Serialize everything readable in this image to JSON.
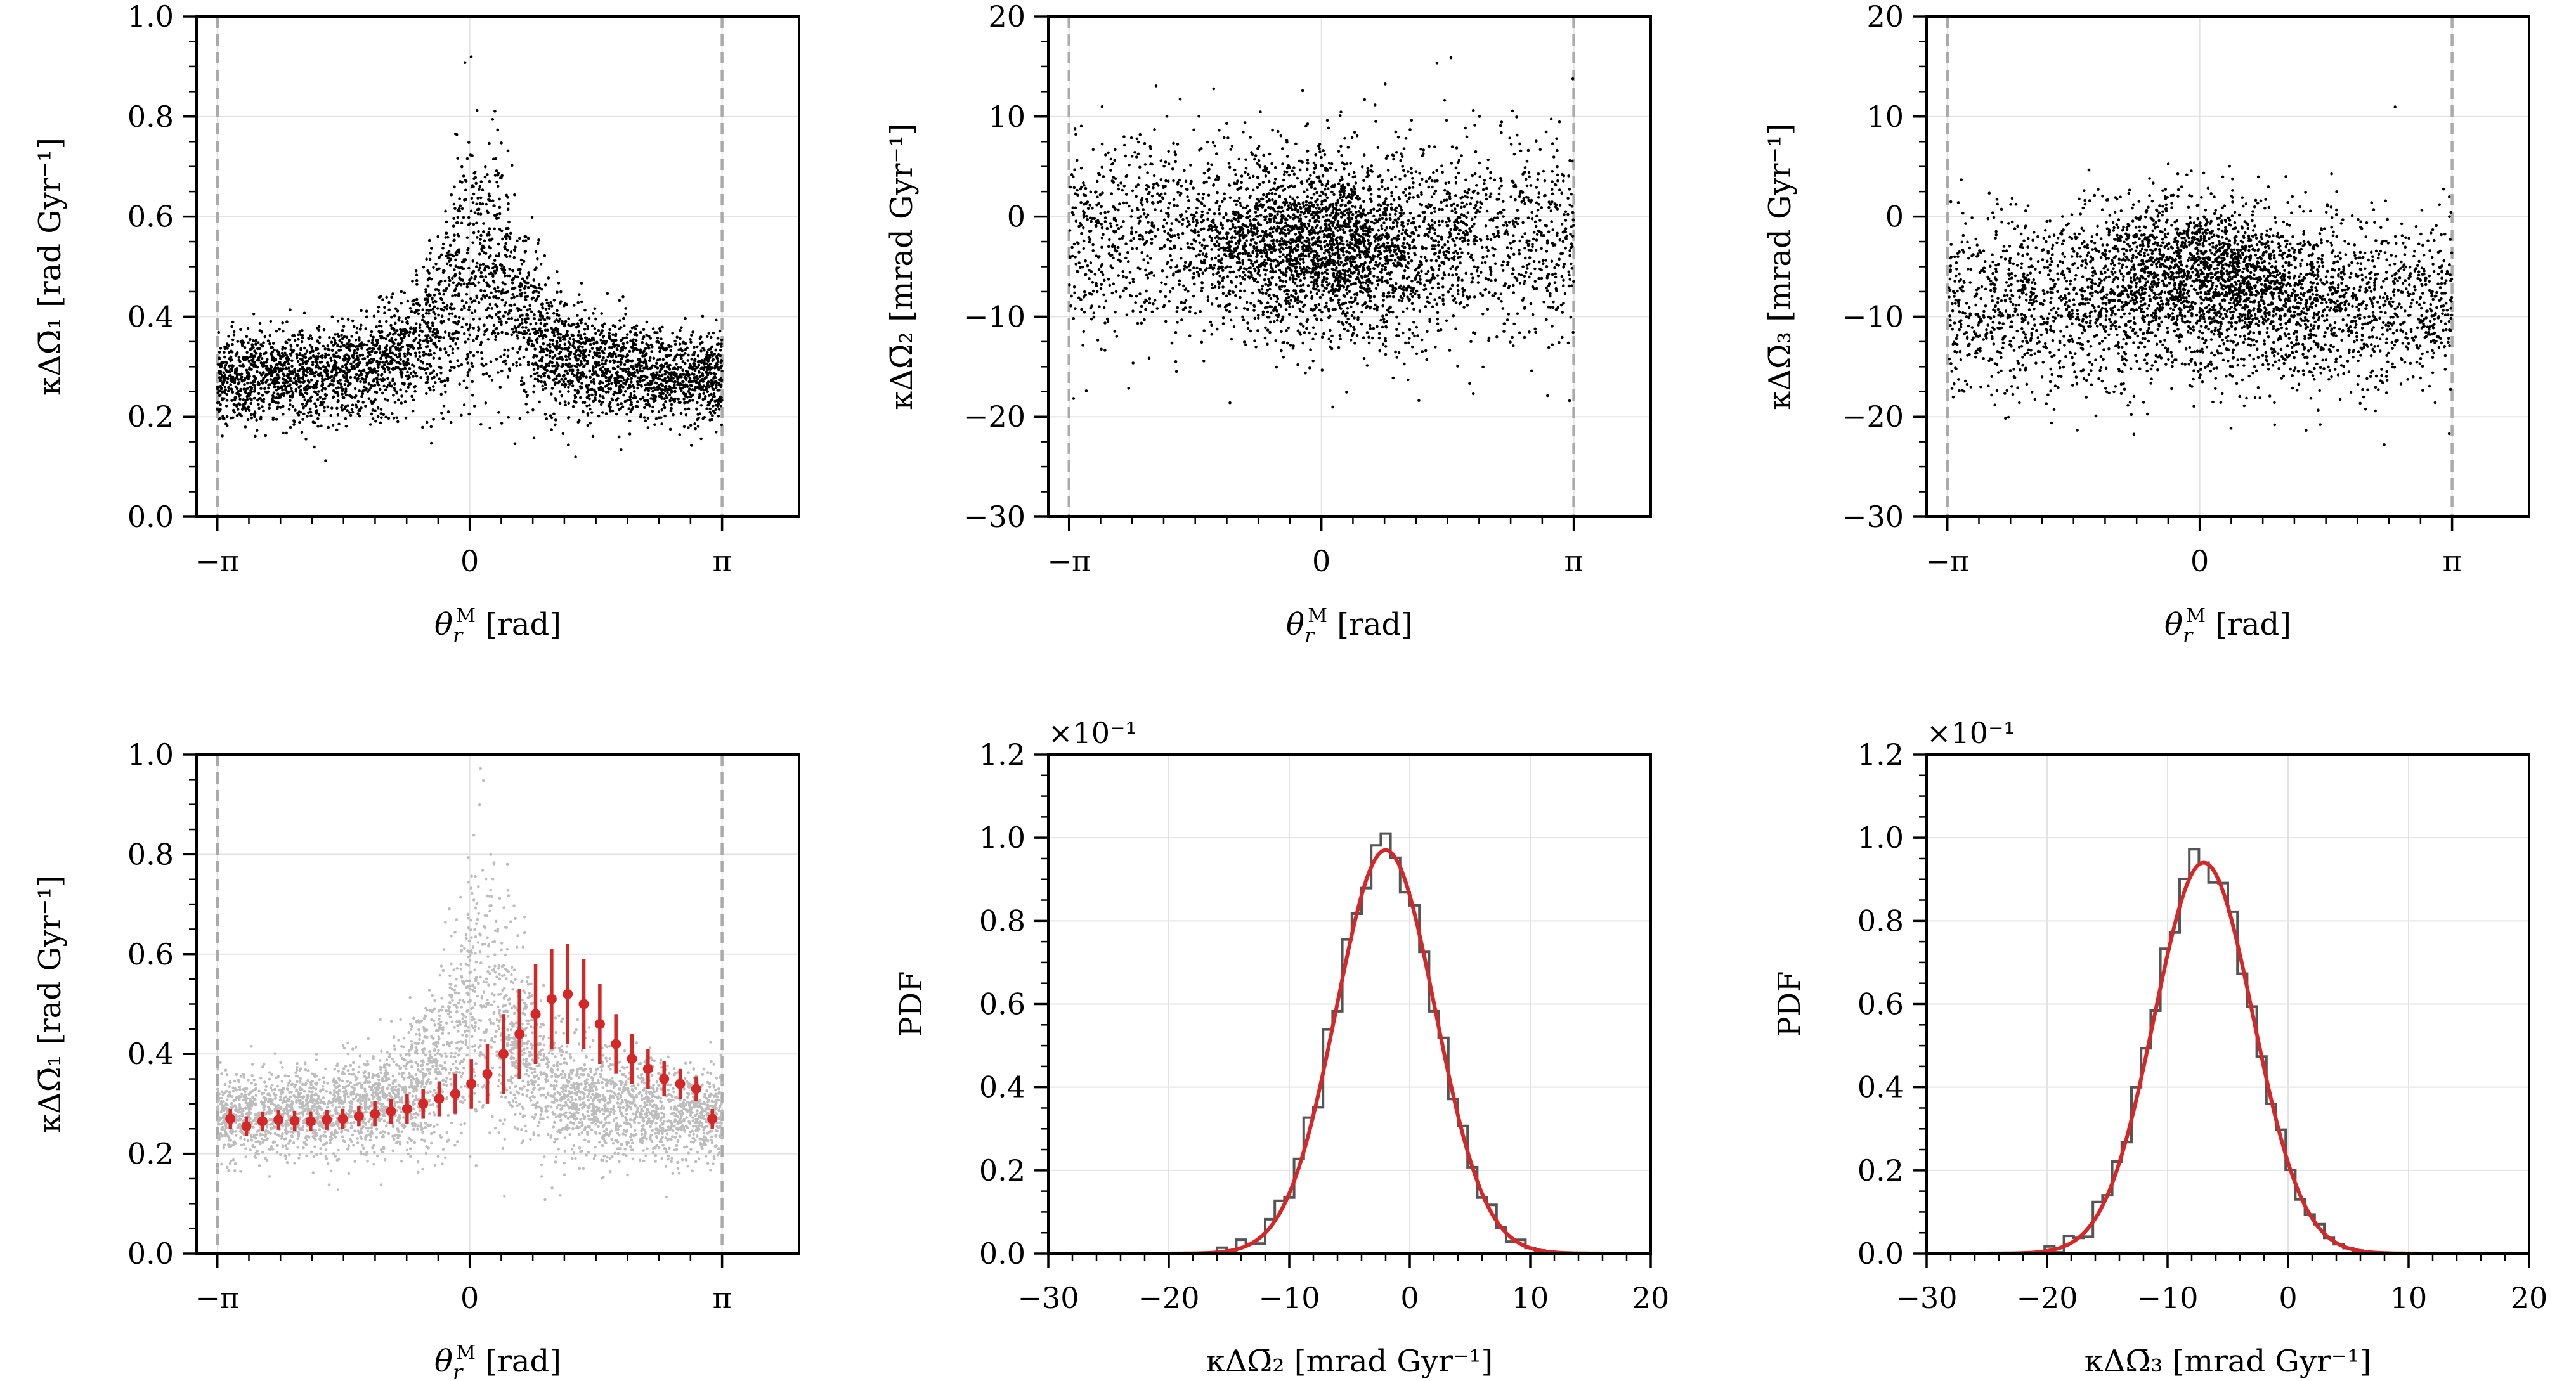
{
  "figure": {
    "colors": {
      "scatter": "#000000",
      "scatter_faint": "#bdbdbd",
      "fit": "#d62728",
      "hist": "#555555",
      "limit_line": "#aaaaaa",
      "grid": "#e3e3e3"
    }
  },
  "chart_data": [
    {
      "type": "scatter",
      "title": "",
      "xlabel": "θ_r^M [rad]",
      "ylabel": "κΔΩ̄₁ [rad Gyr⁻¹]",
      "xlim": [
        -3.4,
        4.1
      ],
      "ylim": [
        0.0,
        1.0
      ],
      "xticks": [
        {
          "value": -3.14159,
          "label": "−π"
        },
        {
          "value": 0,
          "label": "0"
        },
        {
          "value": 3.14159,
          "label": "π"
        }
      ],
      "yticks": [
        {
          "value": 0.0,
          "label": "0.0"
        },
        {
          "value": 0.2,
          "label": "0.2"
        },
        {
          "value": 0.4,
          "label": "0.4"
        },
        {
          "value": 0.6,
          "label": "0.6"
        },
        {
          "value": 0.8,
          "label": "0.8"
        },
        {
          "value": 1.0,
          "label": "1.0"
        }
      ],
      "vlines": [
        -3.14159,
        3.14159
      ],
      "model": {
        "kind": "peak",
        "baseline": 0.27,
        "peak_height": 0.24,
        "peak_width": 0.55,
        "peak_center": 0.15,
        "spread": 0.04,
        "spread_growth": 0.1,
        "n_points": 4000
      },
      "grid": true
    },
    {
      "type": "scatter",
      "title": "",
      "xlabel": "θ_r^M [rad]",
      "ylabel": "κΔΩ̄₂ [mrad Gyr⁻¹]",
      "xlim": [
        -3.4,
        4.1
      ],
      "ylim": [
        -30,
        20
      ],
      "xticks": [
        {
          "value": -3.14159,
          "label": "−π"
        },
        {
          "value": 0,
          "label": "0"
        },
        {
          "value": 3.14159,
          "label": "π"
        }
      ],
      "yticks": [
        {
          "value": -30,
          "label": "−30"
        },
        {
          "value": -20,
          "label": "−20"
        },
        {
          "value": -10,
          "label": "−10"
        },
        {
          "value": 0,
          "label": "0"
        },
        {
          "value": 10,
          "label": "10"
        },
        {
          "value": 20,
          "label": "20"
        }
      ],
      "vlines": [
        -3.14159,
        3.14159
      ],
      "model": {
        "kind": "blob",
        "background_center": -2.0,
        "background_spread": 9.0,
        "blob_center_x": 0.0,
        "blob_center_y": -3.0,
        "blob_spread_x": 0.8,
        "blob_spread_y": 4.0,
        "blob_fraction": 0.45,
        "n_points": 4000
      },
      "grid": true
    },
    {
      "type": "scatter",
      "title": "",
      "xlabel": "θ_r^M [rad]",
      "ylabel": "κΔΩ̄₃ [mrad Gyr⁻¹]",
      "xlim": [
        -3.4,
        4.1
      ],
      "ylim": [
        -30,
        20
      ],
      "xticks": [
        {
          "value": -3.14159,
          "label": "−π"
        },
        {
          "value": 0,
          "label": "0"
        },
        {
          "value": 3.14159,
          "label": "π"
        }
      ],
      "yticks": [
        {
          "value": -30,
          "label": "−30"
        },
        {
          "value": -20,
          "label": "−20"
        },
        {
          "value": -10,
          "label": "−10"
        },
        {
          "value": 0,
          "label": "0"
        },
        {
          "value": 10,
          "label": "10"
        },
        {
          "value": 20,
          "label": "20"
        }
      ],
      "vlines": [
        -3.14159,
        3.14159
      ],
      "model": {
        "kind": "blob",
        "background_center": -9.0,
        "background_spread": 8.0,
        "blob_center_x": 0.2,
        "blob_center_y": -5.0,
        "blob_spread_x": 0.8,
        "blob_spread_y": 3.5,
        "blob_fraction": 0.4,
        "n_points": 4000
      },
      "grid": true
    },
    {
      "type": "scatter",
      "title": "",
      "xlabel": "θ_r^M [rad]",
      "ylabel": "κΔΩ̄₁ [rad Gyr⁻¹]",
      "xlim": [
        -3.4,
        4.1
      ],
      "ylim": [
        0.0,
        1.0
      ],
      "xticks": [
        {
          "value": -3.14159,
          "label": "−π"
        },
        {
          "value": 0,
          "label": "0"
        },
        {
          "value": 3.14159,
          "label": "π"
        }
      ],
      "yticks": [
        {
          "value": 0.0,
          "label": "0.0"
        },
        {
          "value": 0.2,
          "label": "0.2"
        },
        {
          "value": 0.4,
          "label": "0.4"
        },
        {
          "value": 0.6,
          "label": "0.6"
        },
        {
          "value": 0.8,
          "label": "0.8"
        },
        {
          "value": 1.0,
          "label": "1.0"
        }
      ],
      "vlines": [
        -3.14159,
        3.14159
      ],
      "model": {
        "kind": "peak",
        "baseline": 0.27,
        "peak_height": 0.24,
        "peak_width": 0.55,
        "peak_center": 0.15,
        "spread": 0.04,
        "spread_growth": 0.1,
        "n_points": 4000,
        "faint": true
      },
      "binned": {
        "x": [
          -2.98,
          -2.78,
          -2.58,
          -2.38,
          -2.18,
          -1.98,
          -1.78,
          -1.58,
          -1.38,
          -1.18,
          -0.98,
          -0.78,
          -0.58,
          -0.38,
          -0.18,
          0.02,
          0.22,
          0.42,
          0.62,
          0.82,
          1.02,
          1.22,
          1.42,
          1.62,
          1.82,
          2.02,
          2.22,
          2.42,
          2.62,
          2.82,
          3.02
        ],
        "y": [
          0.27,
          0.255,
          0.265,
          0.268,
          0.266,
          0.265,
          0.268,
          0.27,
          0.275,
          0.28,
          0.285,
          0.29,
          0.3,
          0.31,
          0.32,
          0.34,
          0.36,
          0.4,
          0.44,
          0.48,
          0.51,
          0.52,
          0.5,
          0.46,
          0.42,
          0.39,
          0.37,
          0.35,
          0.34,
          0.33,
          0.27
        ],
        "err": [
          0.02,
          0.02,
          0.02,
          0.02,
          0.02,
          0.02,
          0.02,
          0.02,
          0.02,
          0.025,
          0.025,
          0.03,
          0.03,
          0.035,
          0.04,
          0.05,
          0.06,
          0.08,
          0.09,
          0.1,
          0.1,
          0.1,
          0.09,
          0.08,
          0.06,
          0.05,
          0.04,
          0.035,
          0.03,
          0.025,
          0.02
        ]
      },
      "grid": true
    },
    {
      "type": "histogram",
      "title": "",
      "xlabel": "κΔΩ̄₂ [mrad Gyr⁻¹]",
      "ylabel": "PDF",
      "offset_text": "×10⁻¹",
      "xlim": [
        -30,
        20
      ],
      "ylim": [
        0.0,
        1.2
      ],
      "xticks": [
        {
          "value": -30,
          "label": "−30"
        },
        {
          "value": -20,
          "label": "−20"
        },
        {
          "value": -10,
          "label": "−10"
        },
        {
          "value": 0,
          "label": "0"
        },
        {
          "value": 10,
          "label": "10"
        },
        {
          "value": 20,
          "label": "20"
        }
      ],
      "yticks": [
        {
          "value": 0.0,
          "label": "0.0"
        },
        {
          "value": 0.2,
          "label": "0.2"
        },
        {
          "value": 0.4,
          "label": "0.4"
        },
        {
          "value": 0.6,
          "label": "0.6"
        },
        {
          "value": 0.8,
          "label": "0.8"
        },
        {
          "value": 1.0,
          "label": "1.0"
        },
        {
          "value": 1.2,
          "label": "1.2"
        }
      ],
      "fit": {
        "type": "gaussian",
        "mean": -2.0,
        "sigma": 4.1,
        "peak": 0.97
      },
      "hist": {
        "bin_start": -16.0,
        "bin_width": 0.8,
        "bins": 36,
        "noise": [
          0.01,
          -0.02,
          0.02,
          0.0,
          -0.015,
          0.02,
          0.03,
          -0.01,
          0.02,
          0.04,
          -0.03,
          0.05,
          -0.02,
          0.04,
          0.0,
          -0.02,
          0.03,
          0.04,
          0.0,
          -0.03,
          0.02,
          0.01,
          -0.02,
          0.03,
          -0.01,
          0.02,
          0.0,
          -0.01,
          0.02,
          0.0,
          -0.01,
          0.01,
          0.0,
          0.0,
          0.0,
          0.0
        ]
      },
      "grid": true
    },
    {
      "type": "histogram",
      "title": "",
      "xlabel": "κΔΩ̄₃ [mrad Gyr⁻¹]",
      "ylabel": "PDF",
      "offset_text": "×10⁻¹",
      "xlim": [
        -30,
        20
      ],
      "ylim": [
        0.0,
        1.2
      ],
      "xticks": [
        {
          "value": -30,
          "label": "−30"
        },
        {
          "value": -20,
          "label": "−20"
        },
        {
          "value": -10,
          "label": "−10"
        },
        {
          "value": 0,
          "label": "0"
        },
        {
          "value": 10,
          "label": "10"
        },
        {
          "value": 20,
          "label": "20"
        }
      ],
      "yticks": [
        {
          "value": 0.0,
          "label": "0.0"
        },
        {
          "value": 0.2,
          "label": "0.2"
        },
        {
          "value": 0.4,
          "label": "0.4"
        },
        {
          "value": 0.6,
          "label": "0.6"
        },
        {
          "value": 0.8,
          "label": "0.8"
        },
        {
          "value": 1.0,
          "label": "1.0"
        },
        {
          "value": 1.2,
          "label": "1.2"
        }
      ],
      "fit": {
        "type": "gaussian",
        "mean": -7.0,
        "sigma": 4.1,
        "peak": 0.94
      },
      "hist": {
        "bin_start": -21.0,
        "bin_width": 0.8,
        "bins": 36,
        "noise": [
          0.0,
          0.01,
          -0.01,
          0.02,
          0.0,
          -0.02,
          0.03,
          0.0,
          0.02,
          -0.01,
          0.03,
          0.02,
          0.0,
          0.04,
          -0.02,
          0.03,
          0.05,
          0.0,
          -0.03,
          0.02,
          0.03,
          -0.02,
          0.01,
          0.0,
          -0.01,
          0.02,
          0.0,
          -0.01,
          0.0,
          0.01,
          0.0,
          0.0,
          0.0,
          0.0,
          0.0,
          0.0
        ]
      },
      "grid": true
    }
  ]
}
